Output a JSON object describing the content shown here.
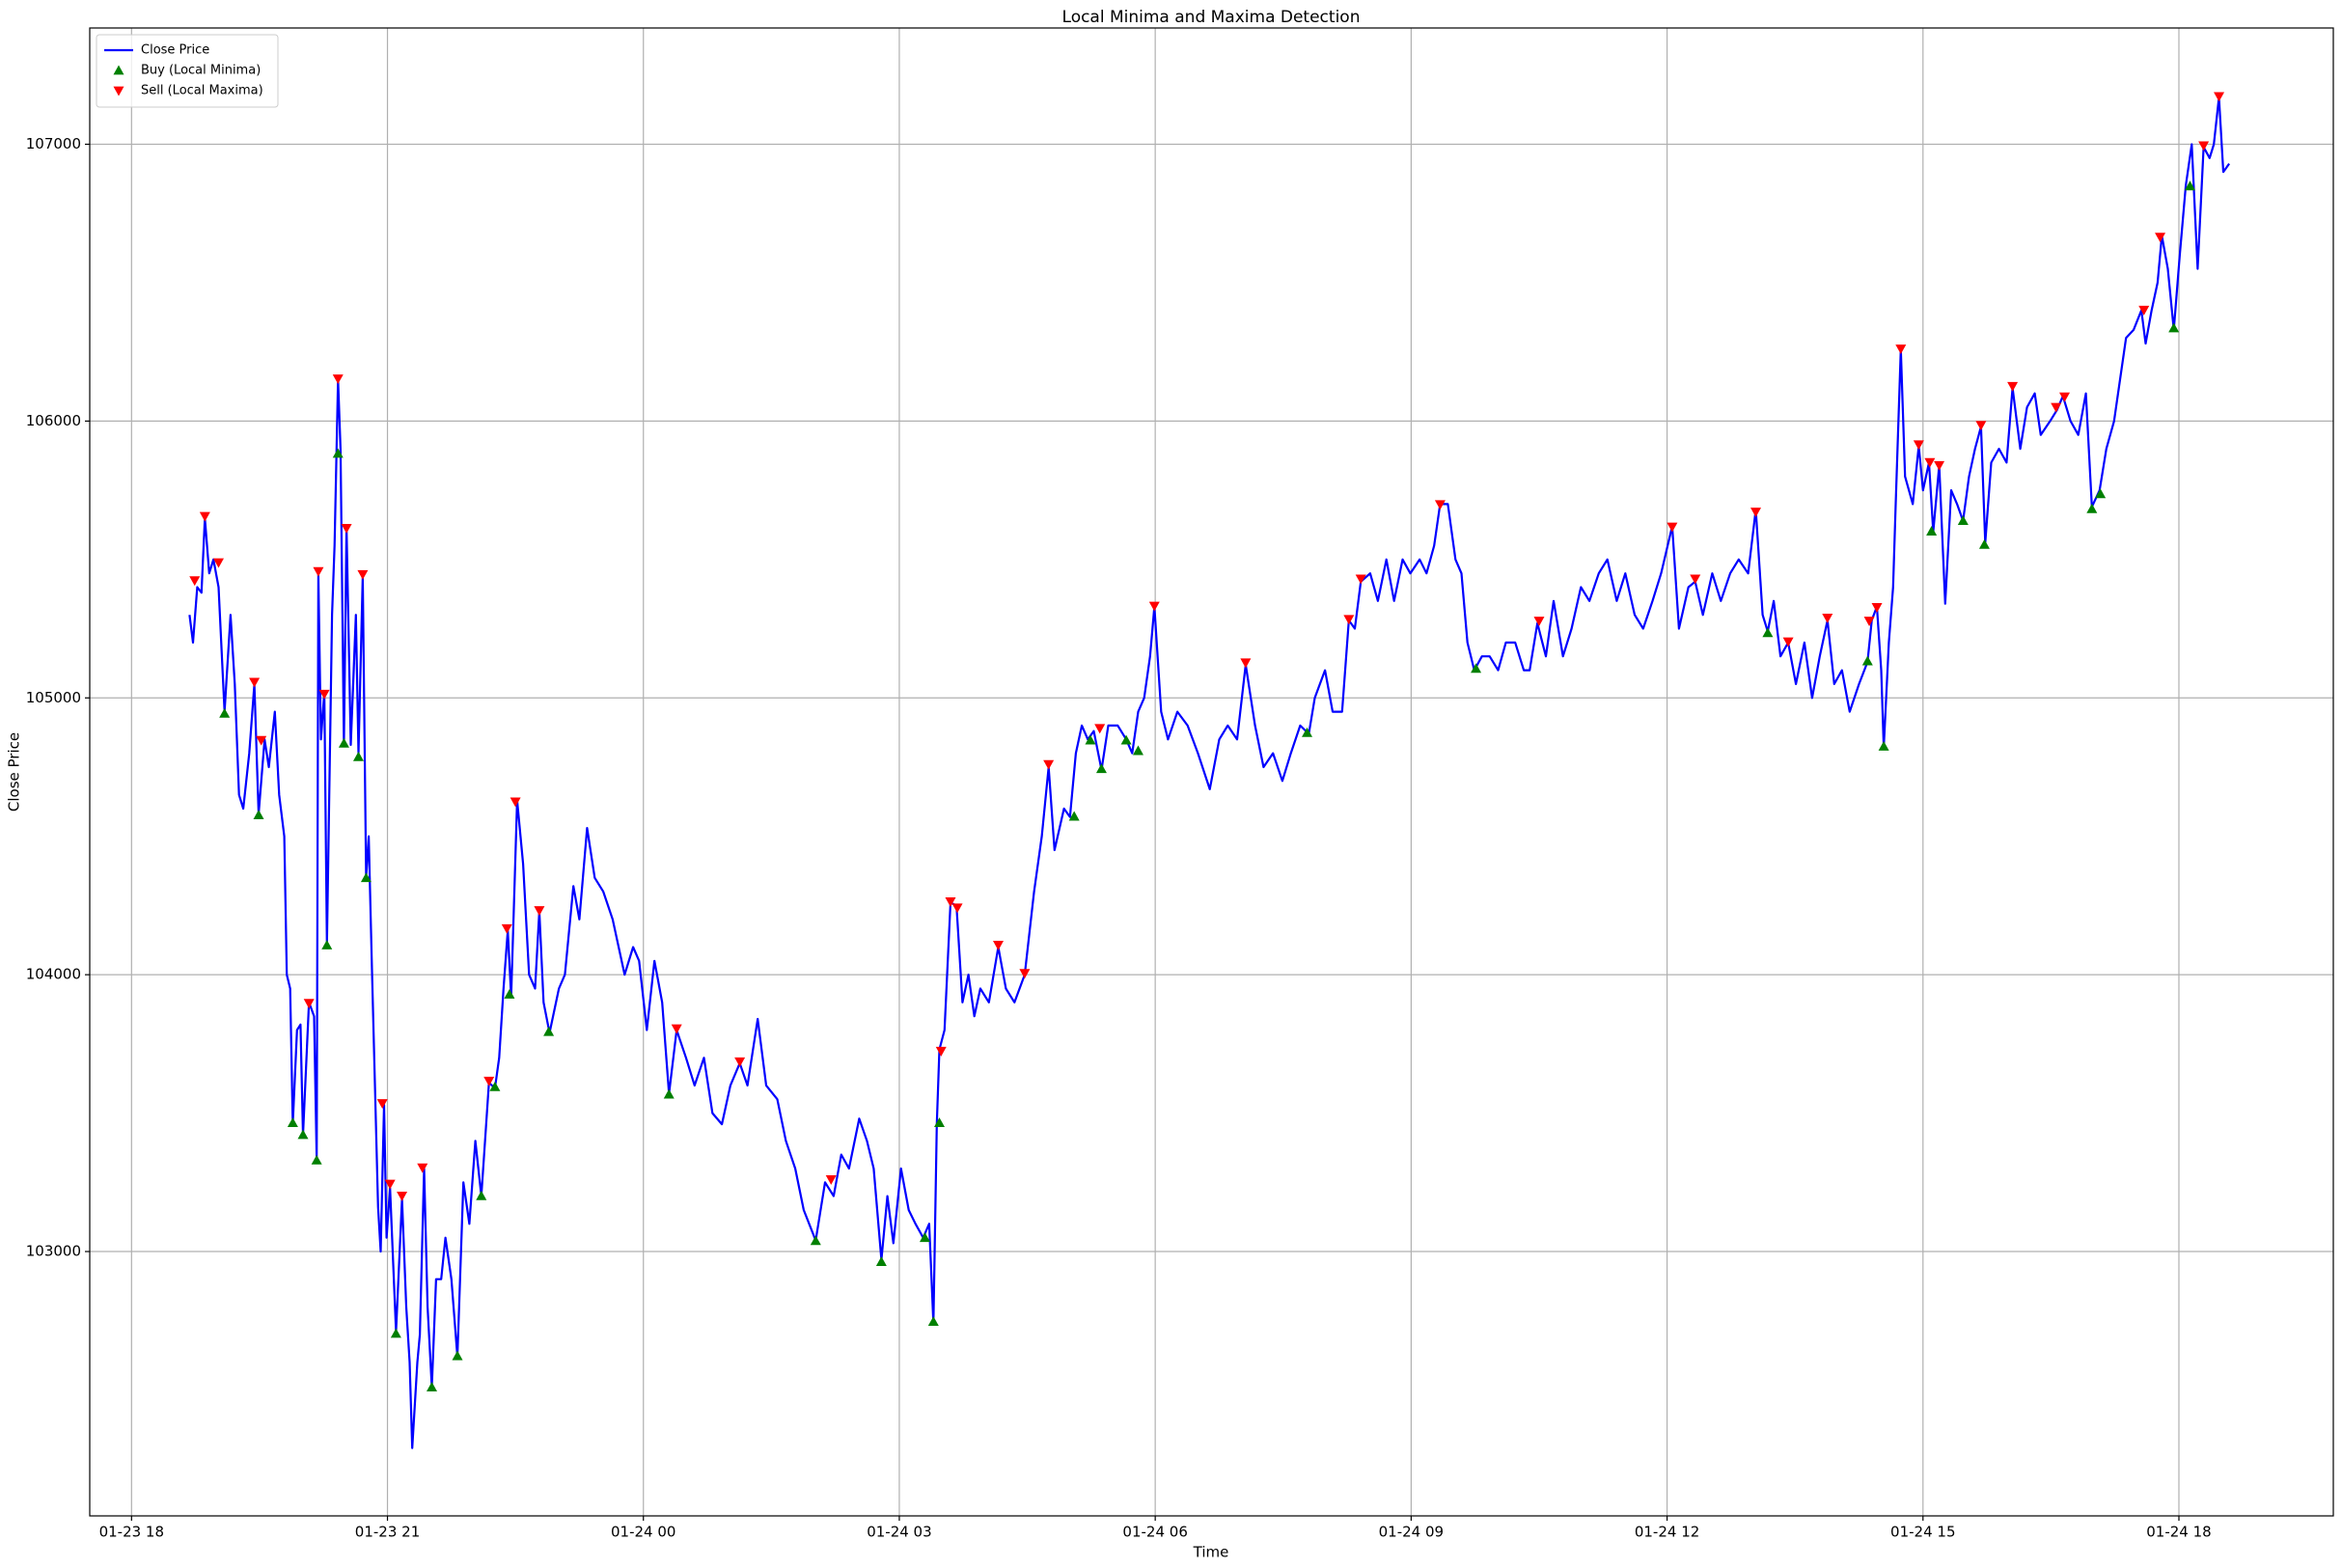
{
  "chart_data": {
    "type": "line",
    "title": "Local Minima and Maxima Detection",
    "xlabel": "Time",
    "ylabel": "Close Price",
    "grid": true,
    "legend": "upper left",
    "xlim": [
      -0.49,
      25.81
    ],
    "ylim": [
      102045,
      107420
    ],
    "xticks": [
      {
        "value": 0,
        "label": "01-23 18"
      },
      {
        "value": 3,
        "label": "01-23 21"
      },
      {
        "value": 6,
        "label": "01-24 00"
      },
      {
        "value": 9,
        "label": "01-24 03"
      },
      {
        "value": 12,
        "label": "01-24 06"
      },
      {
        "value": 15,
        "label": "01-24 09"
      },
      {
        "value": 18,
        "label": "01-24 12"
      },
      {
        "value": 21,
        "label": "01-24 15"
      },
      {
        "value": 24,
        "label": "01-24 18"
      }
    ],
    "yticks": [
      103000,
      104000,
      105000,
      106000,
      107000
    ],
    "x": [
      0.68,
      0.72,
      0.77,
      0.82,
      0.86,
      0.91,
      0.96,
      1.02,
      1.09,
      1.16,
      1.21,
      1.26,
      1.31,
      1.38,
      1.44,
      1.49,
      1.56,
      1.61,
      1.68,
      1.73,
      1.79,
      1.82,
      1.86,
      1.89,
      1.94,
      1.98,
      2.01,
      2.08,
      2.14,
      2.17,
      2.19,
      2.22,
      2.26,
      2.29,
      2.35,
      2.38,
      2.42,
      2.45,
      2.49,
      2.52,
      2.57,
      2.63,
      2.66,
      2.71,
      2.75,
      2.78,
      2.82,
      2.89,
      2.92,
      2.96,
      2.99,
      3.03,
      3.1,
      3.17,
      3.22,
      3.26,
      3.29,
      3.35,
      3.38,
      3.43,
      3.47,
      3.52,
      3.57,
      3.63,
      3.68,
      3.75,
      3.82,
      3.89,
      3.96,
      4.03,
      4.1,
      4.19,
      4.26,
      4.31,
      4.36,
      4.41,
      4.45,
      4.52,
      4.59,
      4.66,
      4.73,
      4.78,
      4.83,
      4.9,
      5.01,
      5.08,
      5.18,
      5.25,
      5.34,
      5.43,
      5.53,
      5.64,
      5.78,
      5.88,
      5.95,
      6.04,
      6.13,
      6.22,
      6.3,
      6.39,
      6.5,
      6.6,
      6.71,
      6.81,
      6.92,
      7.02,
      7.13,
      7.22,
      7.34,
      7.44,
      7.57,
      7.67,
      7.78,
      7.88,
      8.02,
      8.13,
      8.23,
      8.32,
      8.41,
      8.53,
      8.62,
      8.7,
      8.79,
      8.86,
      8.93,
      9.02,
      9.11,
      9.19,
      9.28,
      9.35,
      9.4,
      9.44,
      9.47,
      9.53,
      9.6,
      9.67,
      9.74,
      9.81,
      9.88,
      9.95,
      10.05,
      10.16,
      10.25,
      10.35,
      10.47,
      10.58,
      10.67,
      10.75,
      10.82,
      10.93,
      11.0,
      11.07,
      11.14,
      11.21,
      11.28,
      11.37,
      11.45,
      11.56,
      11.66,
      11.73,
      11.8,
      11.87,
      11.94,
      11.99,
      12.07,
      12.15,
      12.26,
      12.38,
      12.5,
      12.64,
      12.75,
      12.85,
      12.96,
      13.06,
      13.17,
      13.27,
      13.38,
      13.49,
      13.59,
      13.7,
      13.8,
      13.87,
      13.99,
      14.08,
      14.19,
      14.27,
      14.34,
      14.41,
      14.52,
      14.61,
      14.71,
      14.8,
      14.9,
      14.99,
      15.1,
      15.18,
      15.27,
      15.34,
      15.43,
      15.52,
      15.59,
      15.66,
      15.74,
      15.83,
      15.92,
      16.02,
      16.11,
      16.22,
      16.32,
      16.39,
      16.48,
      16.58,
      16.67,
      16.78,
      16.88,
      16.99,
      17.09,
      17.2,
      17.3,
      17.41,
      17.51,
      17.62,
      17.72,
      17.83,
      17.93,
      18.06,
      18.14,
      18.25,
      18.33,
      18.42,
      18.53,
      18.63,
      18.74,
      18.84,
      18.95,
      19.04,
      19.12,
      19.18,
      19.25,
      19.33,
      19.42,
      19.51,
      19.61,
      19.7,
      19.79,
      19.88,
      19.96,
      20.05,
      20.14,
      20.25,
      20.35,
      20.4,
      20.46,
      20.51,
      20.54,
      20.6,
      20.65,
      20.68,
      20.74,
      20.79,
      20.88,
      20.95,
      21.0,
      21.07,
      21.12,
      21.19,
      21.26,
      21.33,
      21.4,
      21.47,
      21.54,
      21.61,
      21.68,
      21.73,
      21.8,
      21.89,
      21.98,
      22.05,
      22.14,
      22.22,
      22.31,
      22.38,
      22.49,
      22.57,
      22.64,
      22.73,
      22.82,
      22.91,
      22.98,
      23.07,
      23.15,
      23.24,
      23.31,
      23.38,
      23.47,
      23.56,
      23.61,
      23.68,
      23.75,
      23.8,
      23.87,
      23.94,
      24.01,
      24.08,
      24.15,
      24.22,
      24.29,
      24.36,
      24.41,
      24.47,
      24.52,
      24.59
    ],
    "series": [
      {
        "name": "Close Price",
        "type": "line",
        "color": "blue",
        "values": [
          105300,
          105200,
          105400,
          105380,
          105650,
          105450,
          105500,
          105400,
          104950,
          105300,
          105050,
          104650,
          104600,
          104800,
          105050,
          104580,
          104850,
          104750,
          104950,
          104650,
          104500,
          104000,
          103950,
          103460,
          103800,
          103820,
          103420,
          103900,
          103850,
          103330,
          105450,
          104850,
          105020,
          104110,
          105300,
          105550,
          106150,
          105900,
          104830,
          105620,
          104830,
          105300,
          104800,
          105440,
          104350,
          104500,
          104000,
          103160,
          103000,
          103530,
          103050,
          103230,
          102710,
          103190,
          102800,
          102600,
          102290,
          102600,
          102700,
          103300,
          102800,
          102510,
          102900,
          102900,
          103050,
          102900,
          102620,
          103250,
          103100,
          103400,
          103200,
          103610,
          103590,
          103700,
          103950,
          104160,
          103920,
          104630,
          104400,
          104000,
          103950,
          104230,
          103900,
          103790,
          103950,
          104000,
          104320,
          104200,
          104530,
          104350,
          104300,
          104200,
          104000,
          104100,
          104050,
          103800,
          104050,
          103900,
          103570,
          103800,
          103700,
          103600,
          103700,
          103500,
          103460,
          103600,
          103680,
          103600,
          103840,
          103600,
          103550,
          103400,
          103300,
          103150,
          103040,
          103250,
          103200,
          103350,
          103300,
          103480,
          103400,
          103300,
          102970,
          103200,
          103030,
          103300,
          103150,
          103100,
          103050,
          103100,
          102740,
          103460,
          103730,
          103800,
          104260,
          104250,
          103900,
          104000,
          103850,
          103950,
          103900,
          104100,
          103950,
          103900,
          104000,
          104300,
          104500,
          104750,
          104450,
          104600,
          104570,
          104800,
          104900,
          104850,
          104880,
          104740,
          104900,
          104900,
          104850,
          104800,
          104950,
          105000,
          105150,
          105330,
          104950,
          104850,
          104950,
          104900,
          104800,
          104670,
          104850,
          104900,
          104850,
          105120,
          104900,
          104750,
          104800,
          104700,
          104800,
          104900,
          104870,
          105000,
          105100,
          104950,
          104950,
          105280,
          105250,
          105420,
          105450,
          105350,
          105500,
          105350,
          105500,
          105450,
          105500,
          105450,
          105550,
          105700,
          105700,
          105500,
          105450,
          105200,
          105100,
          105150,
          105150,
          105100,
          105200,
          105200,
          105100,
          105100,
          105270,
          105150,
          105350,
          105150,
          105250,
          105400,
          105350,
          105450,
          105500,
          105350,
          105450,
          105300,
          105250,
          105350,
          105450,
          105620,
          105250,
          105400,
          105420,
          105300,
          105450,
          105350,
          105450,
          105500,
          105450,
          105680,
          105300,
          105240,
          105350,
          105150,
          105200,
          105050,
          105200,
          105000,
          105150,
          105280,
          105050,
          105100,
          104950,
          105050,
          105130,
          105280,
          105330,
          105100,
          104820,
          105200,
          105400,
          105700,
          106260,
          105800,
          105700,
          105910,
          105750,
          105850,
          105600,
          105840,
          105340,
          105750,
          105700,
          105640,
          105800,
          105900,
          105980,
          105560,
          105850,
          105900,
          105850,
          106120,
          105900,
          106050,
          106100,
          105950,
          106000,
          106040,
          106090,
          106000,
          105950,
          106100,
          105690,
          105750,
          105900,
          106000,
          106150,
          106300,
          106330,
          106400,
          106280,
          106400,
          106500,
          106670,
          106550,
          106330,
          106600,
          106850,
          107000,
          106550,
          106990,
          106950,
          107000,
          107170,
          106900,
          106930
        ]
      },
      {
        "name": "Buy (Local Minima)",
        "type": "scatter",
        "marker": "^",
        "color": "green",
        "x": [
          1.09,
          1.49,
          1.89,
          2.01,
          2.17,
          2.29,
          2.42,
          2.49,
          2.66,
          2.75,
          3.1,
          3.52,
          3.82,
          4.1,
          4.26,
          4.43,
          4.89,
          6.3,
          8.02,
          8.79,
          9.3,
          9.4,
          9.47,
          11.05,
          11.24,
          11.37,
          11.66,
          11.8,
          13.78,
          15.76,
          19.18,
          20.35,
          20.54,
          21.1,
          21.47,
          21.72,
          22.98,
          23.08,
          23.94,
          24.13
        ],
        "values": [
          104944,
          104577,
          103465,
          103422,
          103330,
          104107,
          105883,
          104836,
          104787,
          104350,
          102704,
          102510,
          102623,
          103201,
          103595,
          103929,
          103794,
          103568,
          103039,
          102963,
          103050,
          102747,
          103465,
          104572,
          104847,
          104744,
          104847,
          104809,
          104874,
          105106,
          105235,
          105133,
          104825,
          105602,
          105640,
          105554,
          105683,
          105737,
          106336,
          106849
        ]
      },
      {
        "name": "Sell (Local Maxima)",
        "type": "scatter",
        "marker": "v",
        "color": "red",
        "x": [
          0.74,
          0.86,
          1.02,
          1.44,
          1.52,
          2.08,
          2.19,
          2.26,
          2.42,
          2.52,
          2.71,
          2.94,
          3.03,
          3.17,
          3.41,
          4.19,
          4.4,
          4.5,
          4.78,
          6.39,
          7.13,
          8.2,
          9.49,
          9.6,
          9.68,
          10.16,
          10.47,
          10.75,
          11.35,
          11.99,
          13.06,
          14.27,
          14.41,
          15.34,
          16.5,
          18.06,
          18.33,
          19.04,
          19.42,
          19.88,
          20.37,
          20.46,
          20.74,
          20.95,
          21.08,
          21.19,
          21.68,
          22.05,
          22.56,
          22.66,
          23.59,
          23.78,
          24.29,
          24.47
        ],
        "values": [
          105424,
          105656,
          105489,
          105057,
          104847,
          103897,
          105457,
          105014,
          106153,
          105613,
          105446,
          103535,
          103244,
          103201,
          103303,
          103616,
          104167,
          104625,
          104232,
          103805,
          103686,
          103260,
          103724,
          104264,
          104242,
          104107,
          104005,
          104760,
          104890,
          105332,
          105127,
          105284,
          105430,
          105699,
          105278,
          105618,
          105430,
          105672,
          105203,
          105289,
          105278,
          105327,
          106261,
          105915,
          105851,
          105840,
          105985,
          106126,
          106050,
          106088,
          106401,
          106665,
          106995,
          107173
        ]
      }
    ]
  }
}
